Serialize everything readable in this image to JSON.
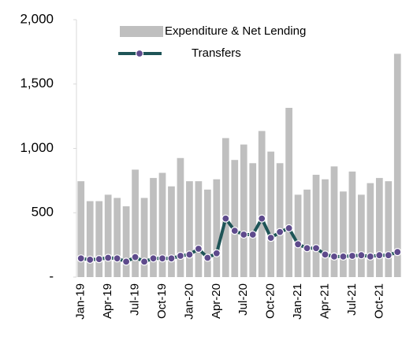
{
  "chart_data": {
    "type": "combo",
    "categories": [
      "Jan-19",
      null,
      null,
      "Apr-19",
      null,
      null,
      "Jul-19",
      null,
      null,
      "Oct-19",
      null,
      null,
      "Jan-20",
      null,
      null,
      "Apr-20",
      null,
      null,
      "Jul-20",
      null,
      null,
      "Oct-20",
      null,
      null,
      "Jan-21",
      null,
      null,
      "Apr-21",
      null,
      null,
      "Jul-21",
      null,
      null,
      "Oct-21",
      null,
      null
    ],
    "series": [
      {
        "name": "Expenditure & Net Lending",
        "type": "bar",
        "color": "#bfbfbf",
        "values": [
          745,
          590,
          590,
          640,
          615,
          550,
          835,
          615,
          770,
          810,
          705,
          925,
          745,
          745,
          680,
          760,
          1080,
          910,
          1030,
          885,
          1135,
          975,
          885,
          1315,
          640,
          680,
          795,
          760,
          860,
          665,
          820,
          640,
          730,
          770,
          745,
          1735
        ]
      },
      {
        "name": "Transfers",
        "type": "line",
        "color": "#1e5457",
        "marker_color": "#5e4a8c",
        "values": [
          145,
          135,
          140,
          150,
          145,
          120,
          155,
          120,
          145,
          145,
          145,
          165,
          175,
          220,
          150,
          185,
          455,
          360,
          330,
          330,
          455,
          305,
          350,
          380,
          255,
          225,
          225,
          175,
          160,
          160,
          165,
          170,
          160,
          170,
          170,
          195
        ]
      }
    ],
    "ylim": [
      0,
      2000
    ],
    "yticks": [
      {
        "value": 0,
        "label": "-"
      },
      500,
      {
        "value": 1000,
        "label": "1,000"
      },
      {
        "value": 1500,
        "label": "1,500"
      },
      {
        "value": 2000,
        "label": "2,000"
      }
    ],
    "grid": false,
    "legend": "top"
  }
}
